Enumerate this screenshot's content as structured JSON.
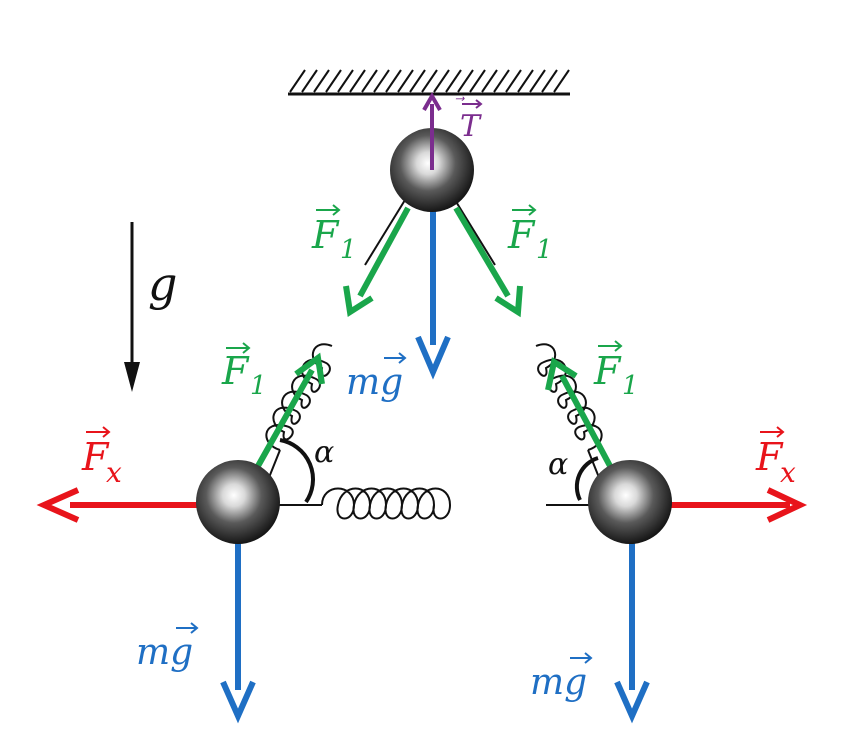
{
  "labels": {
    "tension": "T",
    "gravity": "g",
    "spring_force_1": "F",
    "spring_force_sub": "1",
    "ext_force": "F",
    "ext_force_sub": "x",
    "angle": "α",
    "weight": "mg"
  },
  "colors": {
    "tension": "#7b2d8e",
    "spring_force": "#1aa64b",
    "ext_force": "#e8141b",
    "weight": "#1f6fc4",
    "spring": "#111111",
    "ceiling": "#111111",
    "text_dark": "#111111"
  }
}
